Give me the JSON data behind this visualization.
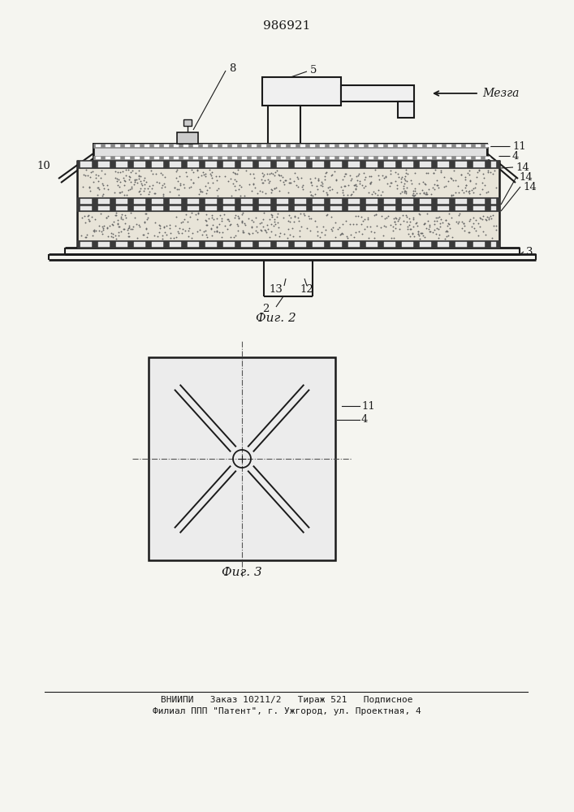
{
  "patent_number": "986921",
  "bg_color": "#f5f5f0",
  "line_color": "#1a1a1a",
  "fig2_caption": "Фиг. 2",
  "fig3_caption": "Фиг. 3",
  "mezga_label": "Мезга",
  "footer_line1": "ВНИИПИ   Заказ 10211/2   Тираж 521   Подписное",
  "footer_line2": "Филиал ППП \"Патент\", г. Ужгород, ул. Проектная, 4"
}
